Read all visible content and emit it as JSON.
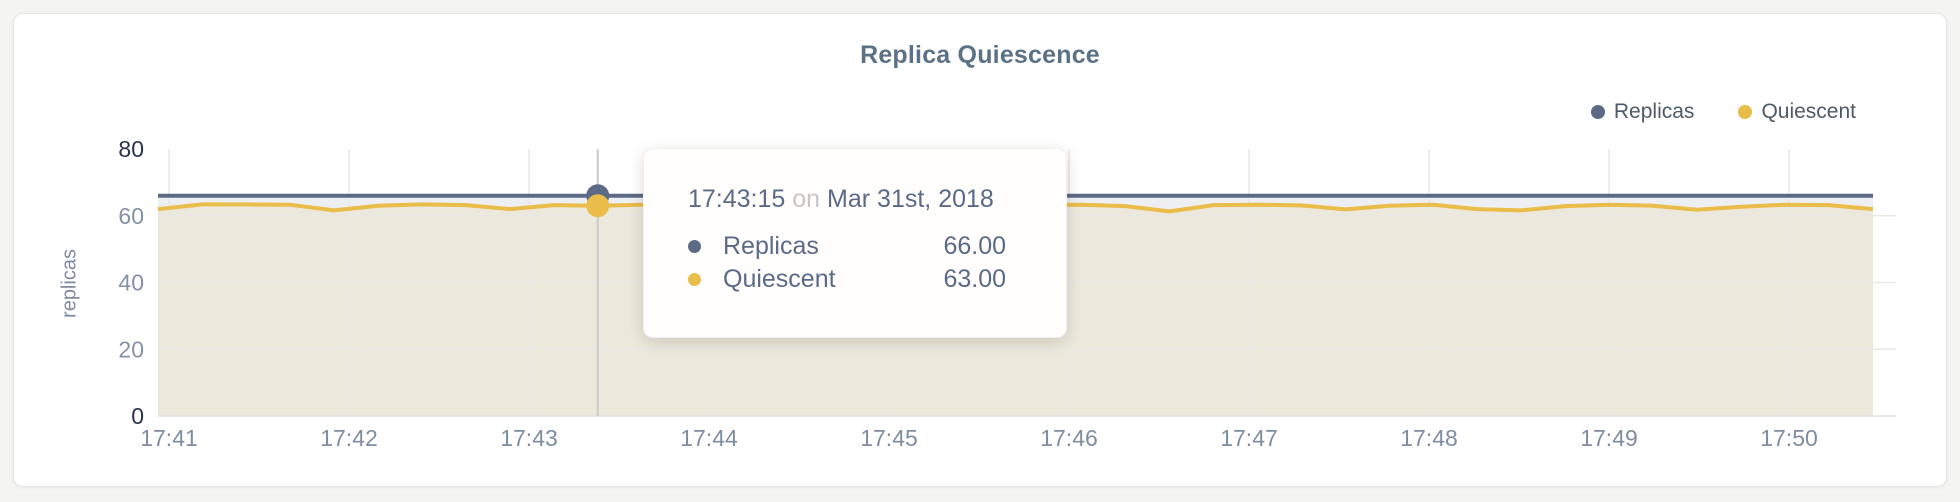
{
  "header": {
    "title": "Replica Quiescence"
  },
  "legend": {
    "items": [
      {
        "label": "Replicas",
        "color": "#5d6a85"
      },
      {
        "label": "Quiescent",
        "color": "#eabd4a"
      }
    ]
  },
  "tooltip": {
    "time": "17:43:15",
    "connector": "on",
    "date": "Mar 31st, 2018",
    "rows": [
      {
        "label": "Replicas",
        "value": "66.00",
        "color": "#5d6a85"
      },
      {
        "label": "Quiescent",
        "value": "63.00",
        "color": "#eabd4a"
      }
    ]
  },
  "chart_data": {
    "type": "area",
    "title": "Replica Quiescence",
    "ylabel": "replicas",
    "ylim": [
      0,
      80
    ],
    "yticks": [
      0,
      20,
      40,
      60,
      80
    ],
    "xticks": [
      "17:41",
      "17:42",
      "17:43",
      "17:44",
      "17:45",
      "17:46",
      "17:47",
      "17:48",
      "17:49",
      "17:50"
    ],
    "grid": true,
    "legend_position": "top-right",
    "series": [
      {
        "name": "Replicas",
        "color": "#5d6a85",
        "fill": "#edeff2",
        "values": [
          66,
          66,
          66,
          66,
          66,
          66,
          66,
          66,
          66,
          66,
          66,
          66,
          66,
          66,
          66,
          66,
          66,
          66,
          66,
          66,
          66,
          66,
          66,
          66,
          66,
          66,
          66,
          66,
          66,
          66,
          66,
          66,
          66,
          66,
          66,
          66,
          66,
          66,
          66,
          66
        ]
      },
      {
        "name": "Quiescent",
        "color": "#eabd4a",
        "fill": "#ece8db",
        "values": [
          62.0,
          63.4,
          63.4,
          63.3,
          61.6,
          63.0,
          63.4,
          63.2,
          62.0,
          63.2,
          63.0,
          63.3,
          62.1,
          61.2,
          62.9,
          63.3,
          63.2,
          62.0,
          63.3,
          63.4,
          63.2,
          63.3,
          62.9,
          61.3,
          63.2,
          63.3,
          63.1,
          61.9,
          63.0,
          63.3,
          62.0,
          61.6,
          62.9,
          63.3,
          63.0,
          61.8,
          62.7,
          63.3,
          63.2,
          62.0
        ]
      }
    ],
    "highlight": {
      "index": 10,
      "time": "17:43:15",
      "date": "Mar 31st, 2018",
      "values": {
        "Replicas": 66.0,
        "Quiescent": 63.0
      }
    },
    "colors": {
      "grid": "#e8e8e5",
      "baseline": "#e1e1de",
      "crosshair": "#cbcbcb",
      "tick_major": "#29334f",
      "tick_minor": "#8591a5",
      "x_tick": "#7f8da1"
    }
  }
}
